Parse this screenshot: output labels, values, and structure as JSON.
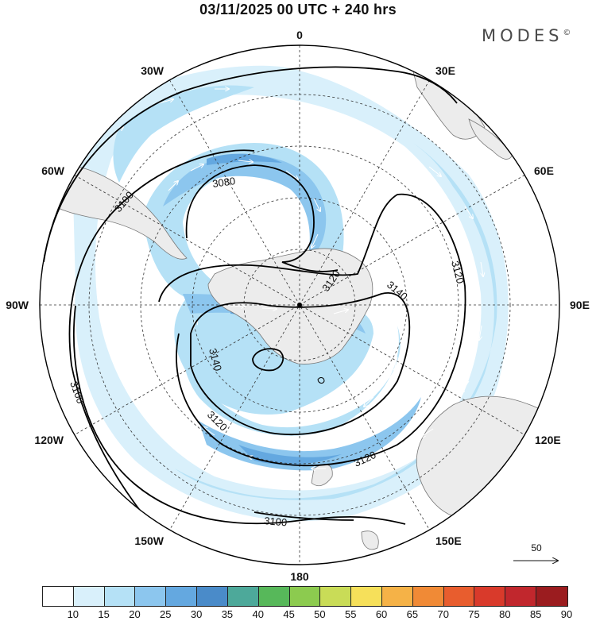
{
  "title": "03/11/2025  00 UTC  + 240 hrs",
  "brand": "MODES",
  "brand_mark": "©",
  "longitude_labels": {
    "lon_0": "0",
    "lon_30e": "30E",
    "lon_60e": "60E",
    "lon_90e": "90E",
    "lon_120e": "120E",
    "lon_150e": "150E",
    "lon_180": "180",
    "lon_150w": "150W",
    "lon_120w": "120W",
    "lon_90w": "90W",
    "lon_60w": "60W",
    "lon_30w": "30W"
  },
  "contour_labels": [
    "3100",
    "3100",
    "3080",
    "3120",
    "3140",
    "3120",
    "3140",
    "3120",
    "3120",
    "3100",
    "3100"
  ],
  "reference_vector": {
    "label": "50"
  },
  "colorbar": {
    "labels": [
      "10",
      "15",
      "20",
      "25",
      "30",
      "35",
      "40",
      "45",
      "50",
      "55",
      "60",
      "65",
      "70",
      "75",
      "80",
      "85",
      "90"
    ],
    "colors": [
      "#ffffff",
      "#d9f0fb",
      "#b5e1f6",
      "#8cc6ee",
      "#64a8e0",
      "#4a8bc9",
      "#4da99a",
      "#57b85a",
      "#8ccb4f",
      "#c9dc57",
      "#f6e05a",
      "#f5b247",
      "#f08a36",
      "#e85d2e",
      "#d93a2b",
      "#c1272d",
      "#9b1c1f"
    ]
  },
  "map_colors": {
    "land": "#ececec",
    "coast": "#777777",
    "contour": "#000000",
    "grid": "#333333"
  }
}
